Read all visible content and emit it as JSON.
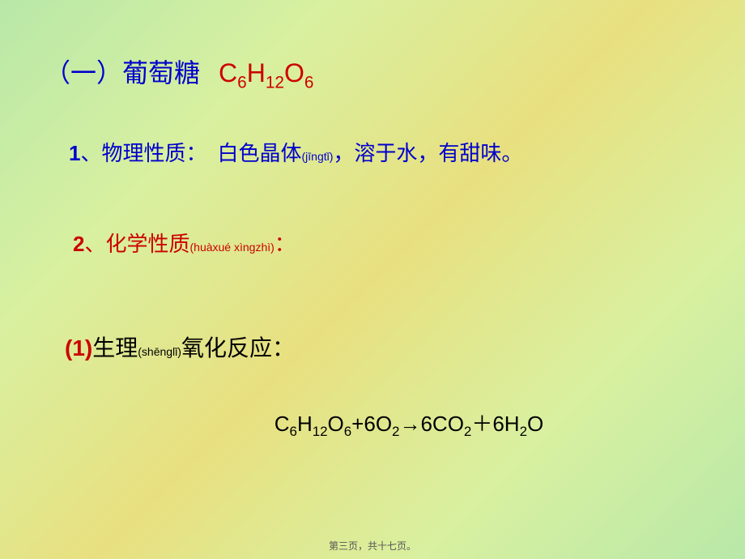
{
  "title": {
    "section": "（一）",
    "name": "葡萄糖",
    "formula_html": "C<sub>6</sub>H<sub>12</sub>O<sub>6</sub>"
  },
  "item1": {
    "num": "1",
    "sep": "、",
    "label": "物理性质：",
    "desc_prefix": "白色晶体",
    "pinyin": "(jīngtǐ)",
    "desc_suffix": "，溶于水，有甜味。"
  },
  "item2": {
    "num": "2",
    "sep": "、",
    "label": "化学性质",
    "pinyin": "(huàxué xìngzhì)",
    "suffix": "："
  },
  "subitem": {
    "num": "(1)",
    "text_prefix": "生理",
    "pinyin": "(shēnglǐ)",
    "text_suffix": "氧化反应："
  },
  "equation_html": "C<sub>6</sub>H<sub>12</sub>O<sub>6</sub>+6O<sub>2</sub>→6CO<sub>2</sub>＋6H<sub>2</sub>O",
  "footer": "第三页，共十七页。",
  "colors": {
    "blue": "#0000cc",
    "red": "#cc0000",
    "black": "#000000",
    "bg_gradient_start": "#b8e8a8",
    "bg_gradient_mid": "#d8f0a0",
    "bg_gradient_mid2": "#e8e080"
  },
  "typography": {
    "title_fontsize": 32,
    "body_fontsize": 26,
    "subitem_fontsize": 28,
    "pinyin_fontsize": 14,
    "footer_fontsize": 12
  }
}
